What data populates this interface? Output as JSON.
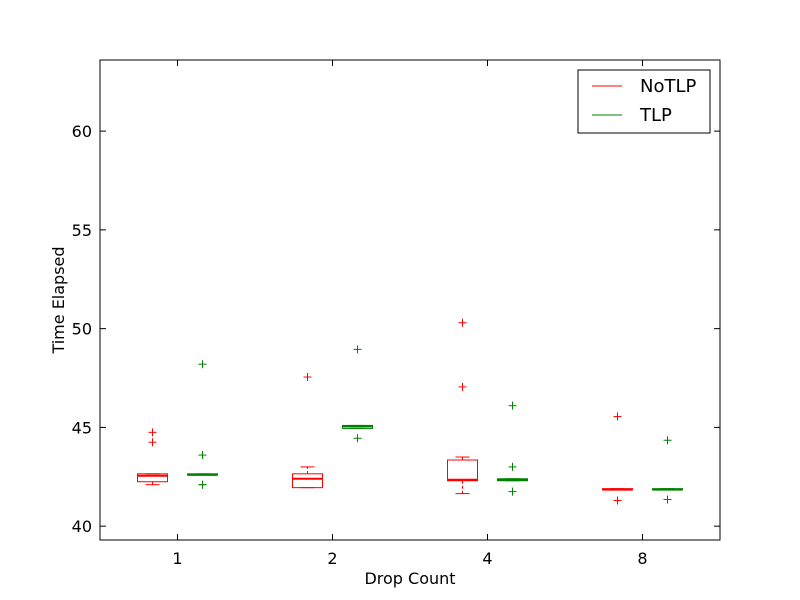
{
  "chart_data": {
    "type": "box",
    "xlabel": "Drop Count",
    "ylabel": "Time Elapsed",
    "ylim": [
      39.3,
      63.6
    ],
    "yticks": [
      40,
      45,
      50,
      55,
      60
    ],
    "categories": [
      "1",
      "2",
      "4",
      "8"
    ],
    "colors": {
      "NoTLP": "#ff0000",
      "TLP": "#008000"
    },
    "legend": {
      "position": "top-right",
      "entries": [
        "NoTLP",
        "TLP"
      ]
    },
    "series": [
      {
        "name": "NoTLP",
        "boxes": [
          {
            "category": "1",
            "whisker_low": 42.1,
            "q1": 42.25,
            "median": 42.55,
            "q3": 42.65,
            "whisker_high": 42.65,
            "outliers": [
              44.75,
              44.25
            ]
          },
          {
            "category": "2",
            "whisker_low": 41.95,
            "q1": 41.95,
            "median": 42.4,
            "q3": 42.65,
            "whisker_high": 43.0,
            "outliers": [
              47.55
            ]
          },
          {
            "category": "4",
            "whisker_low": 41.65,
            "q1": 42.3,
            "median": 42.35,
            "q3": 43.35,
            "whisker_high": 43.5,
            "outliers": [
              50.3,
              47.05
            ]
          },
          {
            "category": "8",
            "whisker_low": 41.85,
            "q1": 41.85,
            "median": 41.85,
            "q3": 41.9,
            "whisker_high": 41.9,
            "outliers": [
              45.55,
              41.3
            ]
          }
        ]
      },
      {
        "name": "TLP",
        "boxes": [
          {
            "category": "1",
            "whisker_low": 42.6,
            "q1": 42.6,
            "median": 42.6,
            "q3": 42.65,
            "whisker_high": 42.65,
            "outliers": [
              48.2,
              43.6,
              42.1,
              42.1
            ]
          },
          {
            "category": "2",
            "whisker_low": 44.95,
            "q1": 44.95,
            "median": 45.05,
            "q3": 45.1,
            "whisker_high": 45.1,
            "outliers": [
              48.95,
              44.45
            ]
          },
          {
            "category": "4",
            "whisker_low": 42.3,
            "q1": 42.3,
            "median": 42.35,
            "q3": 42.4,
            "whisker_high": 42.4,
            "outliers": [
              46.1,
              43.0,
              41.75
            ]
          },
          {
            "category": "8",
            "whisker_low": 41.85,
            "q1": 41.85,
            "median": 41.85,
            "q3": 41.9,
            "whisker_high": 41.9,
            "outliers": [
              44.35,
              41.35
            ]
          }
        ]
      }
    ]
  }
}
